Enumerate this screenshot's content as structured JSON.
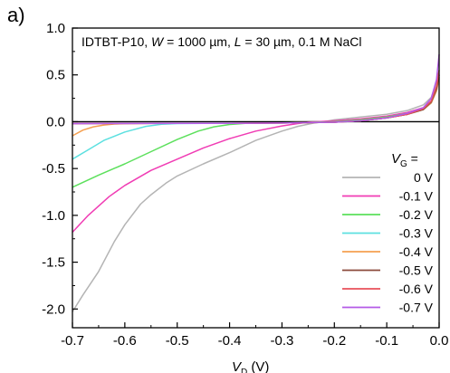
{
  "panel_label": "a)",
  "chart_data": {
    "type": "line",
    "title_parts": [
      {
        "text": "IDTBT-P10, ",
        "italic": false
      },
      {
        "text": "W",
        "italic": true
      },
      {
        "text": " = 1000 µm, ",
        "italic": false
      },
      {
        "text": "L",
        "italic": true
      },
      {
        "text": " = 30 µm, 0.1 M NaCl",
        "italic": false
      }
    ],
    "xlabel": {
      "main": "V",
      "sub": "D",
      "unit": " (V)"
    },
    "ylabel": "",
    "xlim": [
      -0.7,
      0.0
    ],
    "ylim": [
      -2.2,
      1.0
    ],
    "x_ticks": [
      -0.7,
      -0.6,
      -0.5,
      -0.4,
      -0.3,
      -0.2,
      -0.1,
      0.0
    ],
    "x_tick_labels": [
      "-0.7",
      "-0.6",
      "-0.5",
      "-0.4",
      "-0.3",
      "-0.2",
      "-0.1",
      "0.0"
    ],
    "y_ticks": [
      1.0,
      0.5,
      0.0,
      -0.5,
      -1.0,
      -1.5,
      -2.0
    ],
    "y_tick_labels": [
      "1.0",
      "0.5",
      "0.0",
      "-0.5",
      "-1.0",
      "-1.5",
      "-2.0"
    ],
    "reference_line_y": 0.0,
    "legend": {
      "title_main": "V",
      "title_sub": "G",
      "title_suffix": " =",
      "location": "lower-right"
    },
    "series": [
      {
        "name": "0 V",
        "color": "#b4b4b4",
        "x": [
          -0.7,
          -0.68,
          -0.65,
          -0.62,
          -0.6,
          -0.57,
          -0.55,
          -0.52,
          -0.5,
          -0.45,
          -0.4,
          -0.35,
          -0.3,
          -0.27,
          -0.24,
          -0.22,
          -0.2,
          -0.15,
          -0.1,
          -0.06,
          -0.03,
          -0.015,
          -0.005,
          0.0
        ],
        "y": [
          -2.03,
          -1.85,
          -1.6,
          -1.28,
          -1.1,
          -0.88,
          -0.78,
          -0.65,
          -0.58,
          -0.45,
          -0.33,
          -0.2,
          -0.1,
          -0.05,
          -0.015,
          0.0,
          0.02,
          0.05,
          0.08,
          0.12,
          0.18,
          0.26,
          0.42,
          0.55
        ]
      },
      {
        "name": "-0.1 V",
        "color": "#f03cb4",
        "x": [
          -0.7,
          -0.67,
          -0.63,
          -0.6,
          -0.55,
          -0.5,
          -0.45,
          -0.4,
          -0.35,
          -0.3,
          -0.27,
          -0.25,
          -0.23,
          -0.2,
          -0.15,
          -0.1,
          -0.06,
          -0.03,
          -0.015,
          -0.005,
          0.0
        ],
        "y": [
          -1.18,
          -1.0,
          -0.8,
          -0.68,
          -0.52,
          -0.4,
          -0.28,
          -0.18,
          -0.1,
          -0.045,
          -0.02,
          -0.005,
          0.0,
          0.01,
          0.03,
          0.06,
          0.1,
          0.15,
          0.22,
          0.36,
          0.5
        ]
      },
      {
        "name": "-0.2 V",
        "color": "#5ce05c",
        "x": [
          -0.7,
          -0.65,
          -0.6,
          -0.55,
          -0.5,
          -0.46,
          -0.43,
          -0.4,
          -0.37,
          -0.35,
          -0.3,
          -0.25,
          -0.2,
          -0.15,
          -0.1,
          -0.06,
          -0.03,
          -0.015,
          -0.005,
          0.0
        ],
        "y": [
          -0.7,
          -0.57,
          -0.45,
          -0.32,
          -0.19,
          -0.1,
          -0.055,
          -0.03,
          -0.018,
          -0.015,
          -0.012,
          -0.008,
          0.0,
          0.02,
          0.05,
          0.09,
          0.14,
          0.21,
          0.34,
          0.48
        ]
      },
      {
        "name": "-0.3 V",
        "color": "#5ce0e0",
        "x": [
          -0.7,
          -0.67,
          -0.64,
          -0.6,
          -0.56,
          -0.53,
          -0.5,
          -0.45,
          -0.4,
          -0.3,
          -0.2,
          -0.15,
          -0.1,
          -0.06,
          -0.03,
          -0.015,
          -0.005,
          0.0
        ],
        "y": [
          -0.4,
          -0.3,
          -0.2,
          -0.11,
          -0.05,
          -0.028,
          -0.02,
          -0.018,
          -0.017,
          -0.014,
          -0.005,
          0.01,
          0.04,
          0.08,
          0.13,
          0.2,
          0.33,
          0.47
        ]
      },
      {
        "name": "-0.4 V",
        "color": "#f5a050",
        "x": [
          -0.7,
          -0.68,
          -0.66,
          -0.64,
          -0.62,
          -0.6,
          -0.55,
          -0.5,
          -0.4,
          -0.3,
          -0.2,
          -0.15,
          -0.1,
          -0.06,
          -0.03,
          -0.015,
          -0.005,
          0.0
        ],
        "y": [
          -0.15,
          -0.09,
          -0.055,
          -0.035,
          -0.025,
          -0.02,
          -0.018,
          -0.018,
          -0.017,
          -0.014,
          -0.005,
          0.01,
          0.04,
          0.08,
          0.13,
          0.2,
          0.33,
          0.46
        ]
      },
      {
        "name": "-0.5 V",
        "color": "#8b4a3c",
        "x": [
          -0.7,
          -0.6,
          -0.5,
          -0.4,
          -0.3,
          -0.2,
          -0.15,
          -0.1,
          -0.06,
          -0.03,
          -0.015,
          -0.005,
          0.0
        ],
        "y": [
          -0.02,
          -0.019,
          -0.018,
          -0.017,
          -0.014,
          -0.005,
          0.01,
          0.04,
          0.08,
          0.13,
          0.21,
          0.35,
          0.5
        ]
      },
      {
        "name": "-0.6 V",
        "color": "#e8505a",
        "x": [
          -0.7,
          -0.6,
          -0.5,
          -0.4,
          -0.3,
          -0.2,
          -0.15,
          -0.1,
          -0.06,
          -0.03,
          -0.015,
          -0.005,
          0.0
        ],
        "y": [
          -0.02,
          -0.019,
          -0.018,
          -0.017,
          -0.014,
          -0.005,
          0.01,
          0.04,
          0.08,
          0.14,
          0.22,
          0.38,
          0.55
        ]
      },
      {
        "name": "-0.7 V",
        "color": "#b45ae6",
        "x": [
          -0.7,
          -0.6,
          -0.5,
          -0.4,
          -0.3,
          -0.2,
          -0.15,
          -0.1,
          -0.06,
          -0.03,
          -0.015,
          -0.005,
          0.0
        ],
        "y": [
          -0.02,
          -0.019,
          -0.018,
          -0.017,
          -0.014,
          -0.005,
          0.01,
          0.04,
          0.09,
          0.15,
          0.25,
          0.45,
          0.72
        ]
      }
    ]
  }
}
